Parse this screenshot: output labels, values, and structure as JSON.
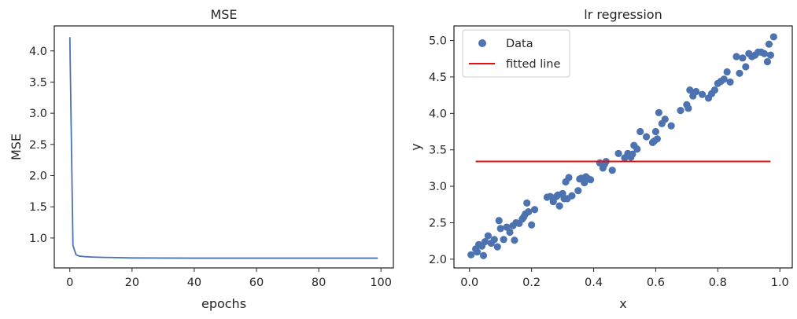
{
  "chart_data": [
    {
      "type": "line",
      "title": "MSE",
      "xlabel": "epochs",
      "ylabel": "MSE",
      "xlim": [
        -5,
        104
      ],
      "ylim": [
        0.52,
        4.4
      ],
      "xticks": [
        0,
        20,
        40,
        60,
        80,
        100
      ],
      "yticks": [
        1.0,
        1.5,
        2.0,
        2.5,
        3.0,
        3.5,
        4.0
      ],
      "ytick_labels": [
        "1.0",
        "1.5",
        "2.0",
        "2.5",
        "3.0",
        "3.5",
        "4.0"
      ],
      "grid": false,
      "color": "#4c72b0",
      "series": [
        {
          "x": [
            0,
            1,
            2,
            3,
            5,
            7,
            10,
            15,
            20,
            30,
            40,
            50,
            60,
            70,
            80,
            90,
            99
          ],
          "values": [
            4.22,
            0.88,
            0.73,
            0.71,
            0.7,
            0.695,
            0.69,
            0.685,
            0.68,
            0.678,
            0.677,
            0.677,
            0.677,
            0.677,
            0.677,
            0.677,
            0.677
          ]
        }
      ]
    },
    {
      "type": "scatter",
      "title": "lr regression",
      "xlabel": "x",
      "ylabel": "y",
      "xlim": [
        -0.05,
        1.04
      ],
      "ylim": [
        1.88,
        5.2
      ],
      "xticks": [
        0.0,
        0.2,
        0.4,
        0.6,
        0.8,
        1.0
      ],
      "xtick_labels": [
        "0.0",
        "0.2",
        "0.4",
        "0.6",
        "0.8",
        "1.0"
      ],
      "yticks": [
        2.0,
        2.5,
        3.0,
        3.5,
        4.0,
        4.5,
        5.0
      ],
      "ytick_labels": [
        "2.0",
        "2.5",
        "3.0",
        "3.5",
        "4.0",
        "4.5",
        "5.0"
      ],
      "grid": false,
      "legend_position": "top-left",
      "series": [
        {
          "name": "Data",
          "kind": "scatter",
          "color": "#4c72b0",
          "x": [
            0.005,
            0.02,
            0.025,
            0.03,
            0.04,
            0.045,
            0.05,
            0.06,
            0.07,
            0.08,
            0.09,
            0.095,
            0.1,
            0.11,
            0.12,
            0.13,
            0.14,
            0.145,
            0.15,
            0.16,
            0.17,
            0.175,
            0.18,
            0.185,
            0.19,
            0.2,
            0.21,
            0.25,
            0.26,
            0.27,
            0.28,
            0.285,
            0.29,
            0.3,
            0.305,
            0.31,
            0.315,
            0.32,
            0.33,
            0.35,
            0.355,
            0.36,
            0.37,
            0.375,
            0.38,
            0.39,
            0.42,
            0.43,
            0.435,
            0.44,
            0.46,
            0.48,
            0.5,
            0.51,
            0.52,
            0.525,
            0.53,
            0.54,
            0.55,
            0.57,
            0.59,
            0.595,
            0.6,
            0.605,
            0.61,
            0.62,
            0.63,
            0.65,
            0.68,
            0.7,
            0.705,
            0.71,
            0.72,
            0.73,
            0.75,
            0.77,
            0.78,
            0.79,
            0.8,
            0.81,
            0.82,
            0.83,
            0.84,
            0.86,
            0.87,
            0.88,
            0.89,
            0.9,
            0.91,
            0.92,
            0.93,
            0.94,
            0.95,
            0.96,
            0.965,
            0.97,
            0.98
          ],
          "y": [
            2.06,
            2.14,
            2.1,
            2.2,
            2.18,
            2.05,
            2.24,
            2.32,
            2.22,
            2.27,
            2.17,
            2.53,
            2.42,
            2.27,
            2.44,
            2.37,
            2.46,
            2.26,
            2.5,
            2.49,
            2.55,
            2.58,
            2.62,
            2.77,
            2.65,
            2.47,
            2.68,
            2.85,
            2.86,
            2.79,
            2.86,
            2.88,
            2.73,
            2.9,
            2.83,
            3.06,
            2.83,
            3.12,
            2.87,
            2.94,
            3.1,
            3.11,
            3.05,
            3.13,
            3.11,
            3.09,
            3.32,
            3.25,
            3.3,
            3.34,
            3.22,
            3.45,
            3.39,
            3.45,
            3.4,
            3.44,
            3.56,
            3.51,
            3.75,
            3.68,
            3.6,
            3.62,
            3.75,
            3.65,
            4.01,
            3.86,
            3.92,
            3.83,
            4.04,
            4.12,
            4.07,
            4.32,
            4.24,
            4.3,
            4.26,
            4.21,
            4.27,
            4.32,
            4.41,
            4.44,
            4.47,
            4.57,
            4.43,
            4.78,
            4.55,
            4.76,
            4.64,
            4.82,
            4.78,
            4.8,
            4.84,
            4.84,
            4.82,
            4.71,
            4.95,
            4.8,
            5.05
          ]
        },
        {
          "name": "fitted line",
          "kind": "line",
          "color": "#e6100e",
          "x": [
            0.02,
            0.97
          ],
          "values": [
            3.34,
            3.34
          ]
        }
      ]
    }
  ]
}
